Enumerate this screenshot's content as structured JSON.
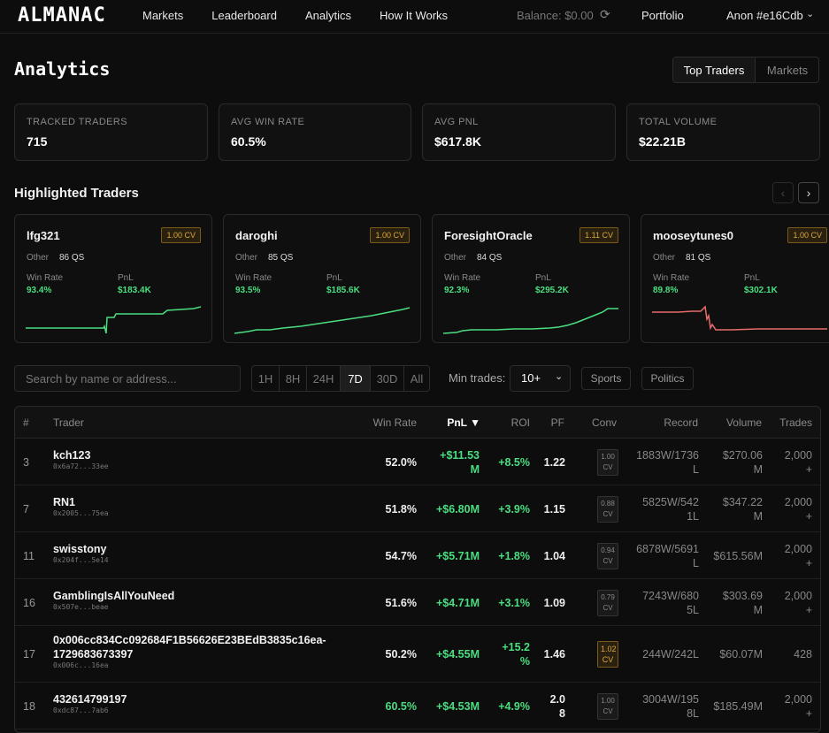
{
  "header": {
    "logo": "ALMANAC",
    "nav": [
      "Markets",
      "Leaderboard",
      "Analytics",
      "How It Works"
    ],
    "balance": "Balance: $0.00",
    "portfolio": "Portfolio",
    "user": "Anon #e16Cdb"
  },
  "page": {
    "title": "Analytics",
    "toggle": [
      "Top Traders",
      "Markets"
    ]
  },
  "stats": [
    {
      "label": "TRACKED TRADERS",
      "value": "715"
    },
    {
      "label": "AVG WIN RATE",
      "value": "60.5%"
    },
    {
      "label": "AVG PNL",
      "value": "$617.8K"
    },
    {
      "label": "TOTAL VOLUME",
      "value": "$22.21B"
    }
  ],
  "highlighted": {
    "title": "Highlighted Traders",
    "cards": [
      {
        "name": "lfg321",
        "cv": "1.00 CV",
        "category": "Other",
        "qs": "86 QS",
        "win_rate_label": "Win Rate",
        "win_rate": "93.4%",
        "pnl_label": "PnL",
        "pnl": "$183.4K",
        "trend": "up"
      },
      {
        "name": "daroghi",
        "cv": "1.00 CV",
        "category": "Other",
        "qs": "85 QS",
        "win_rate_label": "Win Rate",
        "win_rate": "93.5%",
        "pnl_label": "PnL",
        "pnl": "$185.6K",
        "trend": "up"
      },
      {
        "name": "ForesightOracle",
        "cv": "1.11 CV",
        "category": "Other",
        "qs": "84 QS",
        "win_rate_label": "Win Rate",
        "win_rate": "92.3%",
        "pnl_label": "PnL",
        "pnl": "$295.2K",
        "trend": "up"
      },
      {
        "name": "mooseytunes0",
        "cv": "1.00 CV",
        "category": "Other",
        "qs": "81 QS",
        "win_rate_label": "Win Rate",
        "win_rate": "89.8%",
        "pnl_label": "PnL",
        "pnl": "$302.1K",
        "trend": "down"
      }
    ],
    "colors": {
      "up": "#4ade80",
      "down": "#e86b6b"
    }
  },
  "filters": {
    "search_placeholder": "Search by name or address...",
    "periods": [
      "1H",
      "8H",
      "24H",
      "7D",
      "30D",
      "All"
    ],
    "active_period": "7D",
    "min_trades_label": "Min trades:",
    "min_trades_value": "10+",
    "chips": [
      "Sports",
      "Politics"
    ]
  },
  "table": {
    "headers": [
      "#",
      "Trader",
      "Win Rate",
      "PnL ▼",
      "ROI",
      "PF",
      "Conv",
      "Record",
      "Volume",
      "Trades"
    ],
    "rows": [
      {
        "rank": "3",
        "name": "kch123",
        "addr": "0x6a72...33ee",
        "win_rate": "52.0%",
        "pnl": [
          "+$11.53",
          "M"
        ],
        "roi": [
          "+8.5%"
        ],
        "pf": [
          "1.22"
        ],
        "conv": [
          "1.00",
          "CV"
        ],
        "conv_hi": false,
        "record": [
          "1883W/1736",
          "L"
        ],
        "volume": [
          "$270.06",
          "M"
        ],
        "trades": [
          "2,000",
          "+"
        ],
        "wr_green": false
      },
      {
        "rank": "7",
        "name": "RN1",
        "addr": "0x2005...75ea",
        "win_rate": "51.8%",
        "pnl": [
          "+$6.80M"
        ],
        "roi": [
          "+3.9%"
        ],
        "pf": [
          "1.15"
        ],
        "conv": [
          "0.88",
          "CV"
        ],
        "conv_hi": false,
        "record": [
          "5825W/542",
          "1L"
        ],
        "volume": [
          "$347.22",
          "M"
        ],
        "trades": [
          "2,000",
          "+"
        ],
        "wr_green": false
      },
      {
        "rank": "11",
        "name": "swisstony",
        "addr": "0x204f...5e14",
        "win_rate": "54.7%",
        "pnl": [
          "+$5.71M"
        ],
        "roi": [
          "+1.8%"
        ],
        "pf": [
          "1.04"
        ],
        "conv": [
          "0.94",
          "CV"
        ],
        "conv_hi": false,
        "record": [
          "6878W/5691",
          "L"
        ],
        "volume": [
          "$615.56M"
        ],
        "trades": [
          "2,000",
          "+"
        ],
        "wr_green": false
      },
      {
        "rank": "16",
        "name": "GamblingIsAllYouNeed",
        "addr": "0x507e...beae",
        "win_rate": "51.6%",
        "pnl": [
          "+$4.71M"
        ],
        "roi": [
          "+3.1%"
        ],
        "pf": [
          "1.09"
        ],
        "conv": [
          "0.79",
          "CV"
        ],
        "conv_hi": false,
        "record": [
          "7243W/680",
          "5L"
        ],
        "volume": [
          "$303.69",
          "M"
        ],
        "trades": [
          "2,000",
          "+"
        ],
        "wr_green": false
      },
      {
        "rank": "17",
        "name": "0x006cc834Cc092684F1B56626E23BEdB3835c16ea-",
        "name2": "1729683673397",
        "addr": "0x006c...16ea",
        "win_rate": "50.2%",
        "pnl": [
          "+$4.55M"
        ],
        "roi": [
          "+15.2",
          "%"
        ],
        "pf": [
          "1.46"
        ],
        "conv": [
          "1.02",
          "CV"
        ],
        "conv_hi": true,
        "record": [
          "244W/242L"
        ],
        "volume": [
          "$60.07M"
        ],
        "trades": [
          "428"
        ],
        "wr_green": false
      },
      {
        "rank": "18",
        "name": "432614799197",
        "addr": "0xdc87...7ab6",
        "win_rate": "60.5%",
        "pnl": [
          "+$4.53M"
        ],
        "roi": [
          "+4.9%"
        ],
        "pf": [
          "2.0",
          "8"
        ],
        "conv": [
          "1.00",
          "CV"
        ],
        "conv_hi": false,
        "record": [
          "3004W/195",
          "8L"
        ],
        "volume": [
          "$185.49M"
        ],
        "trades": [
          "2,000",
          "+"
        ],
        "wr_green": true
      }
    ]
  }
}
